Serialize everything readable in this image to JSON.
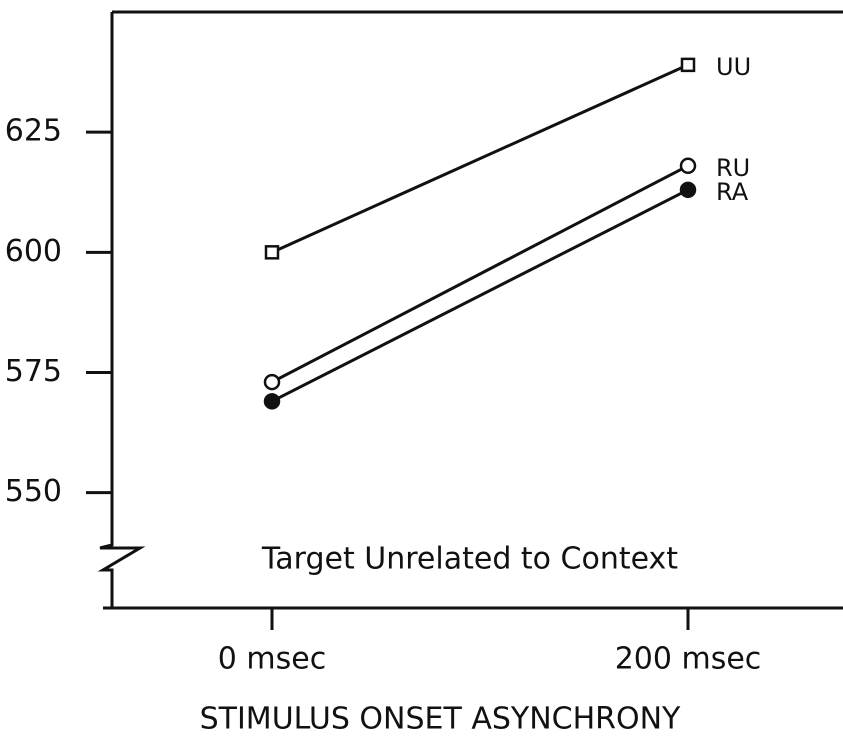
{
  "chart_data": {
    "type": "line",
    "categories": [
      "0 msec",
      "200 msec"
    ],
    "series": [
      {
        "name": "UU",
        "color": "#111111",
        "marker": "square",
        "values": [
          600,
          639
        ]
      },
      {
        "name": "RU",
        "color": "#111111",
        "marker": "open-circle",
        "values": [
          573,
          618
        ]
      },
      {
        "name": "RA",
        "color": "#111111",
        "marker": "filled-circle",
        "values": [
          569,
          613
        ]
      }
    ],
    "ylim": [
      526,
      650
    ],
    "yticks": [
      550,
      575,
      600,
      625
    ],
    "annotation": "Target Unrelated to Context",
    "x_label": "STIMULUS ONSET ASYNCHRONY"
  }
}
